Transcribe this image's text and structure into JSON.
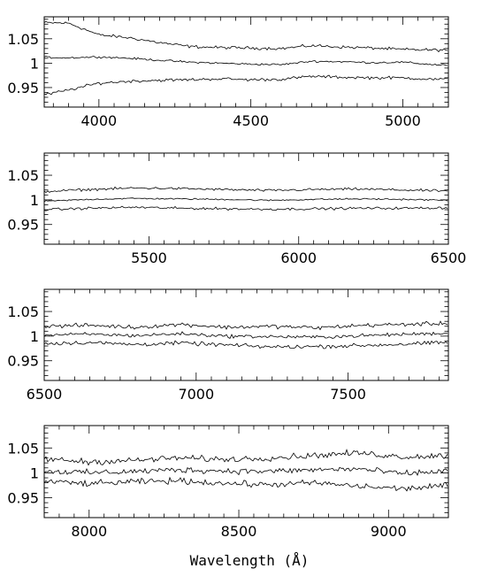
{
  "chart_data": [
    {
      "type": "line",
      "xlim": [
        3820,
        5150
      ],
      "ylim": [
        0.91,
        1.095
      ],
      "xticks": [
        4000,
        4500,
        5000
      ],
      "xtick_labels": [
        "4000",
        "4500",
        "5000"
      ],
      "yticks": [
        0.95,
        1.0,
        1.05
      ],
      "ytick_labels": [
        "0.95",
        "1",
        "1.05"
      ],
      "grid": false,
      "series": [
        {
          "role": "upper",
          "style": "solid",
          "x": [
            3820,
            3900,
            4000,
            4100,
            4200,
            4300,
            4400,
            4500,
            4600,
            4700,
            4800,
            4900,
            5000,
            5100,
            5150
          ],
          "y": [
            1.083,
            1.082,
            1.058,
            1.052,
            1.042,
            1.034,
            1.032,
            1.031,
            1.03,
            1.036,
            1.033,
            1.031,
            1.028,
            1.027,
            1.027
          ]
        },
        {
          "role": "mean",
          "style": "solid",
          "x": [
            3820,
            3900,
            4000,
            4100,
            4200,
            4300,
            4400,
            4500,
            4600,
            4700,
            4800,
            4900,
            5000,
            5100,
            5150
          ],
          "y": [
            1.012,
            1.011,
            1.013,
            1.01,
            1.006,
            1.002,
            1.0,
            0.998,
            0.997,
            1.004,
            1.003,
            1.001,
            1.002,
            0.997,
            0.996
          ]
        },
        {
          "role": "lower",
          "style": "solid",
          "x": [
            3820,
            3900,
            4000,
            4100,
            4200,
            4300,
            4400,
            4500,
            4600,
            4700,
            4800,
            4900,
            5000,
            5100,
            5150
          ],
          "y": [
            0.935,
            0.945,
            0.959,
            0.963,
            0.965,
            0.966,
            0.968,
            0.966,
            0.967,
            0.973,
            0.971,
            0.97,
            0.97,
            0.967,
            0.967
          ]
        }
      ]
    },
    {
      "type": "line",
      "xlim": [
        5150,
        6500
      ],
      "ylim": [
        0.91,
        1.095
      ],
      "xticks": [
        5500,
        6000,
        6500
      ],
      "xtick_labels": [
        "5500",
        "6000",
        "6500"
      ],
      "yticks": [
        0.95,
        1.0,
        1.05
      ],
      "ytick_labels": [
        "0.95",
        "1",
        "1.05"
      ],
      "grid": false,
      "series": [
        {
          "role": "upper",
          "style": "solid",
          "x": [
            5150,
            5300,
            5450,
            5600,
            5750,
            5900,
            6050,
            6200,
            6350,
            6500
          ],
          "y": [
            1.017,
            1.021,
            1.024,
            1.023,
            1.021,
            1.019,
            1.021,
            1.022,
            1.02,
            1.018
          ]
        },
        {
          "role": "mean",
          "style": "solid",
          "x": [
            5150,
            5300,
            5450,
            5600,
            5750,
            5900,
            6050,
            6200,
            6350,
            6500
          ],
          "y": [
            0.997,
            1.001,
            1.003,
            1.002,
            1.001,
            0.999,
            1.001,
            1.002,
            1.001,
            0.999
          ]
        },
        {
          "role": "lower",
          "style": "solid",
          "x": [
            5150,
            5300,
            5450,
            5600,
            5750,
            5900,
            6050,
            6200,
            6350,
            6500
          ],
          "y": [
            0.98,
            0.983,
            0.985,
            0.983,
            0.982,
            0.981,
            0.982,
            0.983,
            0.983,
            0.984
          ]
        }
      ]
    },
    {
      "type": "line",
      "xlim": [
        6500,
        7830
      ],
      "ylim": [
        0.91,
        1.095
      ],
      "xticks": [
        6500,
        7000,
        7500
      ],
      "xtick_labels": [
        "6500",
        "7000",
        "7500"
      ],
      "yticks": [
        0.95,
        1.0,
        1.05
      ],
      "ytick_labels": [
        "0.95",
        "1",
        "1.05"
      ],
      "grid": false,
      "series": [
        {
          "role": "upper",
          "style": "solid",
          "x": [
            6500,
            6650,
            6800,
            6950,
            7100,
            7250,
            7400,
            7550,
            7700,
            7830
          ],
          "y": [
            1.02,
            1.022,
            1.018,
            1.024,
            1.018,
            1.02,
            1.017,
            1.022,
            1.024,
            1.026
          ]
        },
        {
          "role": "mean",
          "style": "solid",
          "x": [
            6500,
            6650,
            6800,
            6950,
            7100,
            7250,
            7400,
            7550,
            7700,
            7830
          ],
          "y": [
            1.002,
            1.004,
            1.001,
            1.005,
            1.0,
            0.999,
            0.998,
            1.001,
            1.004,
            1.006
          ]
        },
        {
          "role": "lower",
          "style": "solid",
          "x": [
            6500,
            6650,
            6800,
            6950,
            7100,
            7250,
            7400,
            7550,
            7700,
            7830
          ],
          "y": [
            0.985,
            0.987,
            0.983,
            0.986,
            0.982,
            0.978,
            0.979,
            0.981,
            0.984,
            0.987
          ]
        }
      ]
    },
    {
      "type": "line",
      "xlim": [
        7850,
        9200
      ],
      "ylim": [
        0.91,
        1.095
      ],
      "xticks": [
        8000,
        8500,
        9000
      ],
      "xtick_labels": [
        "8000",
        "8500",
        "9000"
      ],
      "yticks": [
        0.95,
        1.0,
        1.05
      ],
      "ytick_labels": [
        "0.95",
        "1",
        "1.05"
      ],
      "grid": false,
      "xlabel": "Wavelength (Å)",
      "series": [
        {
          "role": "upper",
          "style": "solid",
          "x": [
            7850,
            8000,
            8150,
            8300,
            8450,
            8600,
            8750,
            8900,
            9050,
            9200
          ],
          "y": [
            1.028,
            1.022,
            1.025,
            1.03,
            1.027,
            1.03,
            1.035,
            1.04,
            1.032,
            1.035
          ]
        },
        {
          "role": "mean",
          "style": "solid",
          "x": [
            7850,
            8000,
            8150,
            8300,
            8450,
            8600,
            8750,
            8900,
            9050,
            9200
          ],
          "y": [
            1.004,
            1.0,
            1.003,
            1.006,
            1.004,
            1.003,
            1.006,
            1.008,
            0.998,
            1.004
          ]
        },
        {
          "role": "lower",
          "style": "solid",
          "x": [
            7850,
            8000,
            8150,
            8300,
            8450,
            8600,
            8750,
            8900,
            9050,
            9200
          ],
          "y": [
            0.983,
            0.978,
            0.982,
            0.984,
            0.979,
            0.976,
            0.98,
            0.973,
            0.968,
            0.975
          ]
        }
      ]
    }
  ]
}
